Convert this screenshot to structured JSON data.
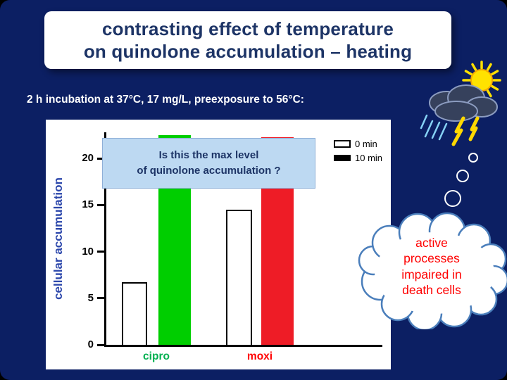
{
  "slide": {
    "title": "contrasting effect of temperature\non quinolone accumulation – heating",
    "subtitle": "2 h incubation at 37°C, 17 mg/L, preexposure to 56°C:",
    "thought_bubble_text": "active\nprocesses\nimpaired in\ndeath cells"
  },
  "chart_data": {
    "type": "bar",
    "ylabel": "cellular accumulation",
    "categories": [
      "cipro",
      "moxi"
    ],
    "category_label_colors": [
      "#00b050",
      "#ff0000"
    ],
    "series": [
      {
        "name": "0 min",
        "values": [
          6.7,
          14.5
        ],
        "fill": "#ffffff",
        "outline": "#000000"
      },
      {
        "name": "10 min",
        "values": [
          22.5,
          22.3
        ],
        "fills": [
          "#00ce00",
          "#ee1c26"
        ]
      }
    ],
    "yticks": [
      0,
      5,
      10,
      15,
      20
    ],
    "ylim": [
      0,
      22.8
    ],
    "grid": false,
    "legend_position": "top-right",
    "legend": [
      {
        "label": "0 min",
        "swatch": "open"
      },
      {
        "label": "10 min",
        "swatch": "filled"
      }
    ],
    "annotation": "Is this the max level\nof quinolone accumulation ?"
  },
  "colors": {
    "background": "#0c1f63",
    "title_text": "#1d3466",
    "annotation_bg": "#bdd9f2",
    "y_axis_label": "#2c47ab",
    "bubble_text": "#ff0000"
  },
  "icons": {
    "top_right": [
      "sun-icon",
      "storm-cloud-icon",
      "lightning-icon",
      "rain-icon"
    ],
    "right_side": [
      "thought-trail-icon",
      "thought-bubble-icon"
    ]
  }
}
